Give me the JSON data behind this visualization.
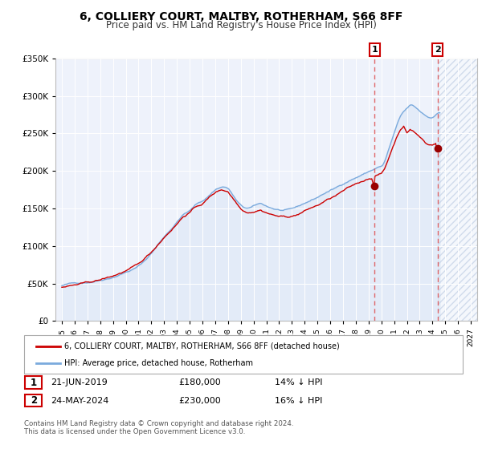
{
  "title": "6, COLLIERY COURT, MALTBY, ROTHERHAM, S66 8FF",
  "subtitle": "Price paid vs. HM Land Registry's House Price Index (HPI)",
  "legend_label_red": "6, COLLIERY COURT, MALTBY, ROTHERHAM, S66 8FF (detached house)",
  "legend_label_blue": "HPI: Average price, detached house, Rotherham",
  "footnote": "Contains HM Land Registry data © Crown copyright and database right 2024.\nThis data is licensed under the Open Government Licence v3.0.",
  "transaction1_date": "21-JUN-2019",
  "transaction1_price": "£180,000",
  "transaction1_hpi": "14% ↓ HPI",
  "transaction2_date": "24-MAY-2024",
  "transaction2_price": "£230,000",
  "transaction2_hpi": "16% ↓ HPI",
  "marker1_x": 2019.47,
  "marker1_y": 180000,
  "marker2_x": 2024.39,
  "marker2_y": 230000,
  "ylim": [
    0,
    350000
  ],
  "xlim": [
    1994.5,
    2027.5
  ],
  "yticks": [
    0,
    50000,
    100000,
    150000,
    200000,
    250000,
    300000,
    350000
  ],
  "xticks": [
    1995,
    1996,
    1997,
    1998,
    1999,
    2000,
    2001,
    2002,
    2003,
    2004,
    2005,
    2006,
    2007,
    2008,
    2009,
    2010,
    2011,
    2012,
    2013,
    2014,
    2015,
    2016,
    2017,
    2018,
    2019,
    2020,
    2021,
    2022,
    2023,
    2024,
    2025,
    2026,
    2027
  ],
  "bg_color": "#eef2fb",
  "hpi_color": "#7aaadd",
  "hpi_fill_color": "#c5d8f0",
  "price_color": "#cc0000",
  "marker_color": "#990000",
  "vline_color": "#dd4444",
  "hatch_color": "#c8d4e8"
}
